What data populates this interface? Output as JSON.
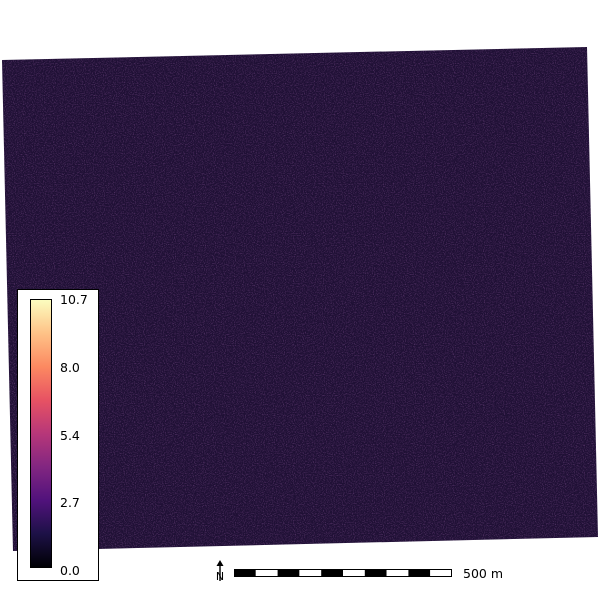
{
  "map": {
    "raster_name": "",
    "colormap": "magma",
    "background_color": "#1f1035",
    "ramp_colors": [
      "#000004",
      "#1d1147",
      "#51127c",
      "#822681",
      "#b73779",
      "#e75263",
      "#fc8961",
      "#fec287",
      "#fcfdbf"
    ],
    "value_range": [
      0.0,
      10.7
    ],
    "mean_level": 0.25
  },
  "legend": {
    "ticks": [
      {
        "value": 10.7,
        "label": "10.7"
      },
      {
        "value": 8.0,
        "label": "8.0"
      },
      {
        "value": 5.4,
        "label": "5.4"
      },
      {
        "value": 2.7,
        "label": "2.7"
      },
      {
        "value": 0.0,
        "label": "0.0"
      }
    ]
  },
  "north_arrow": {
    "label": "N",
    "icon": "north-arrow-icon"
  },
  "scale_bar": {
    "label": "500 m",
    "segments": 10
  }
}
